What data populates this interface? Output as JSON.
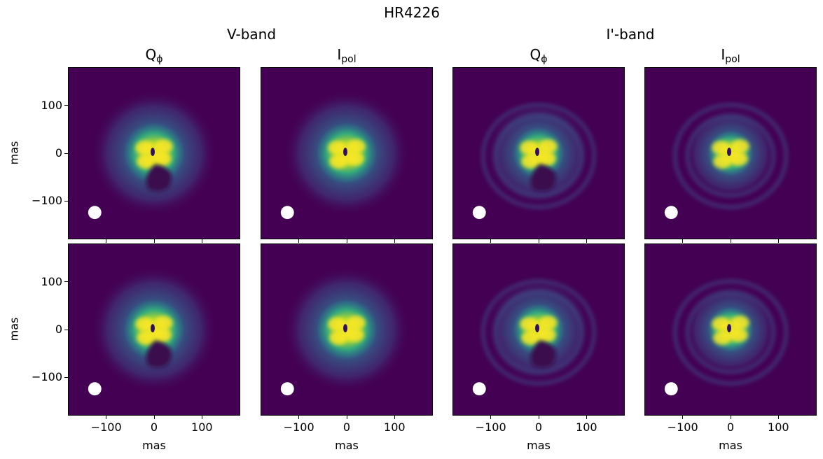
{
  "chart_data": {
    "type": "heatmap",
    "title": "HR4226",
    "bands": [
      "V-band",
      "I'-band"
    ],
    "columns": [
      {
        "band": "V-band",
        "quantity": "Q",
        "sub": "ϕ"
      },
      {
        "band": "V-band",
        "quantity": "I",
        "sub": "pol"
      },
      {
        "band": "I'-band",
        "quantity": "Q",
        "sub": "ϕ"
      },
      {
        "band": "I'-band",
        "quantity": "I",
        "sub": "pol"
      }
    ],
    "rows": 2,
    "xlabel": "mas",
    "ylabel": "mas",
    "xlim": [
      -180,
      180
    ],
    "ylim": [
      -180,
      180
    ],
    "xticks": [
      -100,
      0,
      100
    ],
    "yticks": [
      100,
      0,
      -100
    ],
    "xtick_labels": [
      "−100",
      "0",
      "100"
    ],
    "ytick_labels": [
      "100",
      "0",
      "−100"
    ],
    "beam_marker": {
      "x": -125,
      "y": -125
    },
    "colormap": "viridis",
    "colors": {
      "background": "#440154",
      "peak": "#fde725",
      "mid": "#21918c",
      "beam": "#ffffff"
    }
  }
}
